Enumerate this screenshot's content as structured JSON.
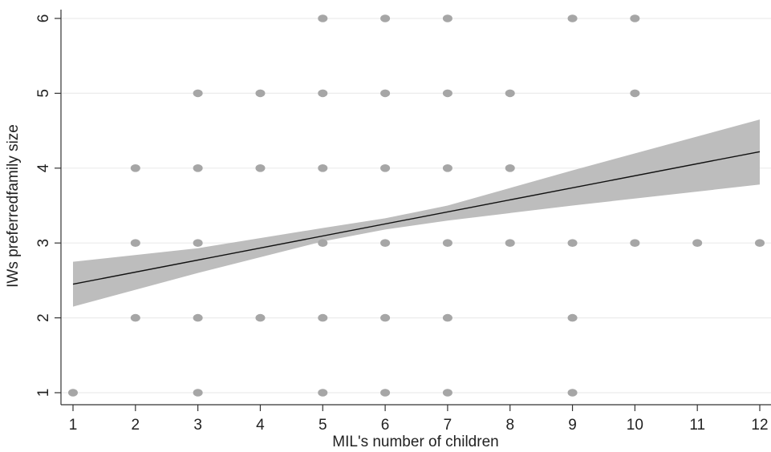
{
  "colors": {
    "background": "#ffffff",
    "points": "#a6a6a6",
    "ci_band": "#bdbdbd",
    "fit_line": "#111111",
    "gridline": "#ececec",
    "axis": "#333333"
  },
  "chart_data": {
    "type": "scatter",
    "title": "",
    "xlabel": "MIL's number of children",
    "ylabel": "IWs preferredfamily size",
    "xlim": [
      1,
      12
    ],
    "ylim": [
      1,
      6
    ],
    "xticks": [
      "1",
      "2",
      "3",
      "4",
      "5",
      "6",
      "7",
      "8",
      "9",
      "10",
      "11",
      "12"
    ],
    "yticks": [
      "1",
      "2",
      "3",
      "4",
      "5",
      "6"
    ],
    "grid": "horizontal",
    "legend": "none",
    "points": [
      {
        "x": 1,
        "y": 1
      },
      {
        "x": 3,
        "y": 1
      },
      {
        "x": 5,
        "y": 1
      },
      {
        "x": 6,
        "y": 1
      },
      {
        "x": 7,
        "y": 1
      },
      {
        "x": 9,
        "y": 1
      },
      {
        "x": 2,
        "y": 2
      },
      {
        "x": 3,
        "y": 2
      },
      {
        "x": 4,
        "y": 2
      },
      {
        "x": 5,
        "y": 2
      },
      {
        "x": 6,
        "y": 2
      },
      {
        "x": 7,
        "y": 2
      },
      {
        "x": 9,
        "y": 2
      },
      {
        "x": 2,
        "y": 3
      },
      {
        "x": 3,
        "y": 3
      },
      {
        "x": 5,
        "y": 3
      },
      {
        "x": 6,
        "y": 3
      },
      {
        "x": 7,
        "y": 3
      },
      {
        "x": 8,
        "y": 3
      },
      {
        "x": 9,
        "y": 3
      },
      {
        "x": 10,
        "y": 3
      },
      {
        "x": 11,
        "y": 3
      },
      {
        "x": 12,
        "y": 3
      },
      {
        "x": 2,
        "y": 4
      },
      {
        "x": 3,
        "y": 4
      },
      {
        "x": 4,
        "y": 4
      },
      {
        "x": 5,
        "y": 4
      },
      {
        "x": 6,
        "y": 4
      },
      {
        "x": 7,
        "y": 4
      },
      {
        "x": 8,
        "y": 4
      },
      {
        "x": 3,
        "y": 5
      },
      {
        "x": 4,
        "y": 5
      },
      {
        "x": 5,
        "y": 5
      },
      {
        "x": 6,
        "y": 5
      },
      {
        "x": 7,
        "y": 5
      },
      {
        "x": 8,
        "y": 5
      },
      {
        "x": 10,
        "y": 5
      },
      {
        "x": 5,
        "y": 6
      },
      {
        "x": 6,
        "y": 6
      },
      {
        "x": 7,
        "y": 6
      },
      {
        "x": 9,
        "y": 6
      },
      {
        "x": 10,
        "y": 6
      }
    ],
    "fit_line": {
      "x": [
        1,
        12
      ],
      "y": [
        2.45,
        4.22
      ]
    },
    "confidence_band": {
      "x": [
        1,
        3,
        5,
        6,
        7,
        9,
        12
      ],
      "upper": [
        2.75,
        2.93,
        3.2,
        3.33,
        3.5,
        3.97,
        4.65
      ],
      "lower": [
        2.15,
        2.6,
        3.02,
        3.18,
        3.3,
        3.5,
        3.78
      ]
    }
  }
}
